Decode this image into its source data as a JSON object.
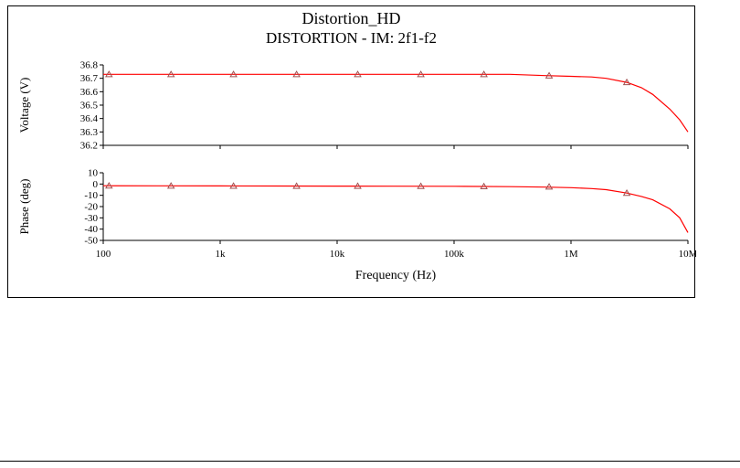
{
  "titles": {
    "line1": "Distortion_HD",
    "line2": "DISTORTION - IM: 2f1-f2"
  },
  "x_axis": {
    "label": "Frequency (Hz)",
    "scale": "log",
    "ticks": [
      100,
      1000,
      10000,
      100000,
      1000000,
      10000000
    ],
    "tick_labels": [
      "100",
      "1k",
      "10k",
      "100k",
      "1M",
      "10M"
    ]
  },
  "colors": {
    "curve": "#ff0000",
    "marker": "#a05050",
    "axis": "#000000",
    "background": "#ffffff"
  },
  "chart_data": [
    {
      "type": "line",
      "title": "Distortion_HD — DISTORTION - IM: 2f1-f2",
      "ylabel": "Voltage (V)",
      "x_scale": "log",
      "xlim": [
        100,
        10000000
      ],
      "ylim": [
        36.2,
        36.8
      ],
      "yticks": [
        36.8,
        36.7,
        36.6,
        36.5,
        36.4,
        36.3,
        36.2
      ],
      "ytick_labels": [
        "36.8",
        "36.7",
        "36.6",
        "36.5",
        "36.4",
        "36.3",
        "36.2"
      ],
      "grid": false,
      "legend": false,
      "series": [
        {
          "name": "voltage",
          "color": "#ff0000",
          "x": [
            100,
            300,
            1000,
            3000,
            10000,
            30000,
            100000,
            300000,
            600000,
            1000000,
            1500000,
            2000000,
            3000000,
            4000000,
            5000000,
            7000000,
            8500000,
            10000000
          ],
          "y": [
            36.73,
            36.73,
            36.73,
            36.73,
            36.73,
            36.73,
            36.73,
            36.73,
            36.72,
            36.715,
            36.71,
            36.7,
            36.67,
            36.63,
            36.58,
            36.47,
            36.39,
            36.3
          ],
          "markers": {
            "shape": "triangle-open",
            "color": "#a05050",
            "x": [
              112,
              380,
              1300,
              4500,
              15000,
              52000,
              180000,
              650000,
              3000000
            ],
            "y": [
              36.73,
              36.73,
              36.73,
              36.73,
              36.73,
              36.73,
              36.73,
              36.72,
              36.67
            ]
          }
        }
      ]
    },
    {
      "type": "line",
      "title": "Distortion_HD — DISTORTION - IM: 2f1-f2",
      "ylabel": "Phase (deg)",
      "x_scale": "log",
      "xlim": [
        100,
        10000000
      ],
      "ylim": [
        -50,
        10
      ],
      "yticks": [
        10,
        0,
        -10,
        -20,
        -30,
        -40,
        -50
      ],
      "ytick_labels": [
        "10",
        "0",
        "-10",
        "-20",
        "-30",
        "-40",
        "-50"
      ],
      "grid": false,
      "legend": false,
      "series": [
        {
          "name": "phase",
          "color": "#ff0000",
          "x": [
            100,
            300,
            1000,
            3000,
            10000,
            30000,
            100000,
            300000,
            600000,
            1000000,
            1500000,
            2000000,
            3000000,
            4000000,
            5000000,
            7000000,
            8500000,
            10000000
          ],
          "y": [
            -1.5,
            -1.6,
            -1.7,
            -1.75,
            -1.8,
            -1.9,
            -2.0,
            -2.3,
            -2.7,
            -3.2,
            -4.0,
            -5.0,
            -8.0,
            -11,
            -14,
            -22,
            -30,
            -43
          ],
          "markers": {
            "shape": "triangle-open",
            "color": "#a05050",
            "x": [
              112,
              380,
              1300,
              4500,
              15000,
              52000,
              180000,
              650000,
              3000000
            ],
            "y": [
              -1.5,
              -1.6,
              -1.7,
              -1.8,
              -1.8,
              -1.9,
              -2.1,
              -2.4,
              -8.0
            ]
          }
        }
      ]
    }
  ]
}
